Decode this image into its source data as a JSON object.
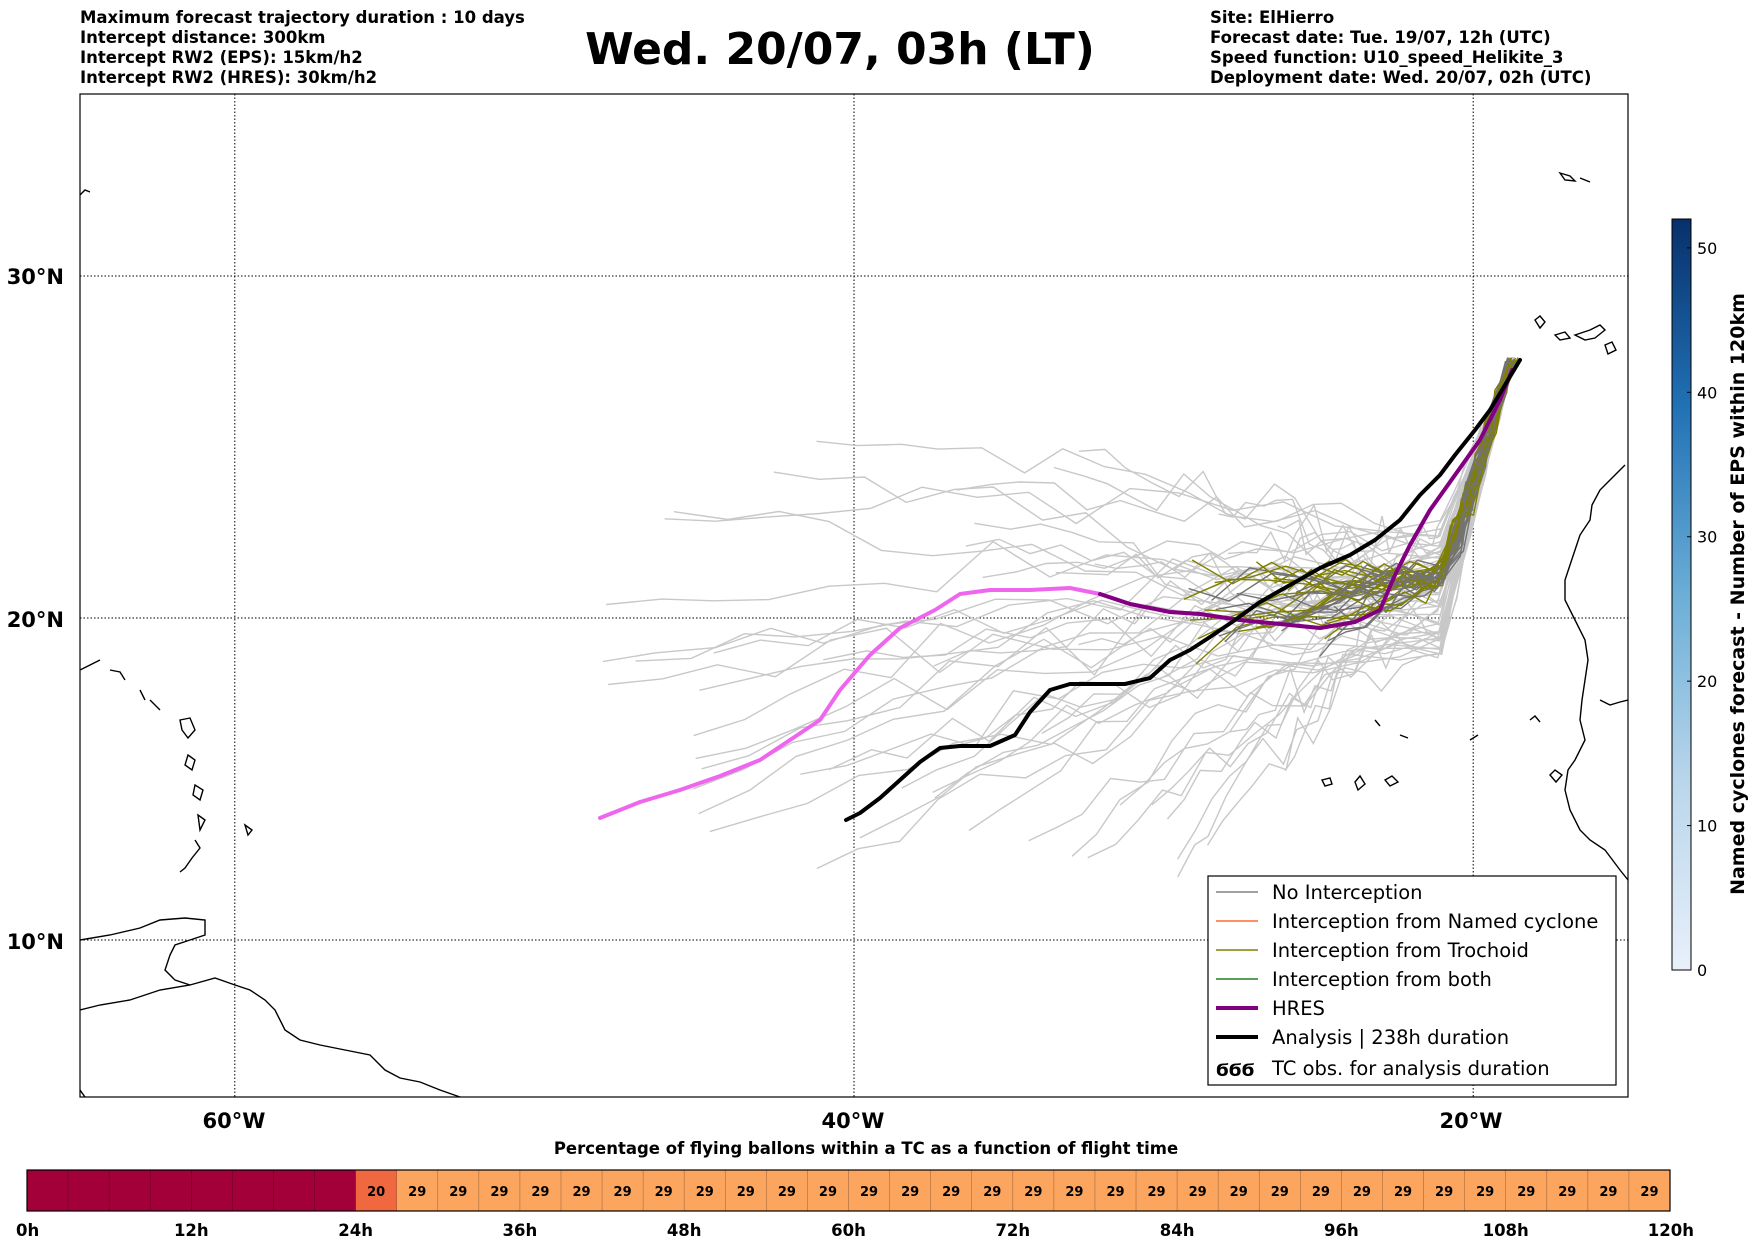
{
  "header": {
    "info_left": [
      "Maximum forecast trajectory duration : 10 days",
      "Intercept distance: 300km",
      "Intercept RW2 (EPS):  15km/h2",
      "Intercept RW2 (HRES): 30km/h2"
    ],
    "title": "Wed. 20/07, 03h (LT)",
    "info_right": [
      "Site: ElHierro",
      "Forecast date: Tue. 19/07, 12h (UTC)",
      "Speed function: U10_speed_Helikite_3",
      "Deployment date: Wed. 20/07, 02h (UTC)"
    ]
  },
  "map": {
    "lat_labels": [
      "30°N",
      "20°N",
      "10°N"
    ],
    "lon_labels": [
      "60°W",
      "40°W",
      "20°W"
    ],
    "lat_values": [
      30,
      20,
      10
    ],
    "lon_values": [
      -60,
      -40,
      -20
    ],
    "extent": {
      "lon_min": -65,
      "lon_max": -15,
      "lat_min": 5.4,
      "lat_max": 34.7
    }
  },
  "legend": {
    "items": [
      {
        "label": "No Interception",
        "color": "#808080",
        "style": "thin-line"
      },
      {
        "label": "Interception from Named cyclone",
        "color": "#ff6a30",
        "style": "thin-line"
      },
      {
        "label": "Interception from Trochoid",
        "color": "#808000",
        "style": "thin-line"
      },
      {
        "label": "Interception from both",
        "color": "#208020",
        "style": "thin-line"
      },
      {
        "label": "HRES",
        "color": "#800080",
        "style": "thick-line"
      },
      {
        "label": "Analysis | 238h duration",
        "color": "#000000",
        "style": "thick-line"
      },
      {
        "label": "TC obs. for analysis duration",
        "color": "#000000",
        "style": "cyclone-symbols"
      }
    ]
  },
  "colorbar": {
    "label": "Named cyclones forecast - Number of EPS within 120km",
    "ticks": [
      "0",
      "10",
      "20",
      "30",
      "40",
      "50"
    ],
    "tick_values": [
      0,
      10,
      20,
      30,
      40,
      50
    ],
    "max": 52,
    "color_low": "#e8f0fa",
    "color_high": "#08306b"
  },
  "timeline": {
    "title": "Percentage of flying ballons within a TC as a function of flight time",
    "labels": [
      "0h",
      "12h",
      "24h",
      "36h",
      "48h",
      "60h",
      "72h",
      "84h",
      "96h",
      "108h",
      "120h"
    ],
    "cell_values": [
      null,
      null,
      null,
      null,
      null,
      null,
      null,
      null,
      "20",
      "29",
      "29",
      "29",
      "29",
      "29",
      "29",
      "29",
      "29",
      "29",
      "29",
      "29",
      "29",
      "29",
      "29",
      "29",
      "29",
      "29",
      "29",
      "29",
      "29",
      "29",
      "29",
      "29",
      "29",
      "29",
      "29",
      "29",
      "29",
      "29",
      "29",
      "29"
    ],
    "colors": {
      "high": "#a3003a",
      "mid": "#f06840",
      "low": "#fca55f"
    }
  },
  "tracks": {
    "hres_color": "#ee66ee",
    "hres_eps_color": "#800080",
    "analysis_color": "#000000",
    "eps_color": "#c8c8c8",
    "no_interception_color": "#737373",
    "trochoid_color": "#808000"
  }
}
